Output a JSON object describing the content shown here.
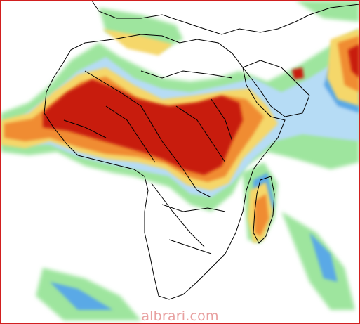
{
  "map": {
    "watermark": "albrari.com",
    "colors": {
      "border": "#d21f1f",
      "coastline": "#000000",
      "background": "#ffffff",
      "rain_light_green": "#9ee59e",
      "rain_green": "#3fbf5a",
      "rain_light_blue": "#b6dcf5",
      "rain_blue": "#5aa9e6",
      "rain_yellow": "#f5d76a",
      "rain_orange": "#f08c30",
      "rain_dark_orange": "#e06020",
      "rain_red": "#c81e0a"
    }
  }
}
